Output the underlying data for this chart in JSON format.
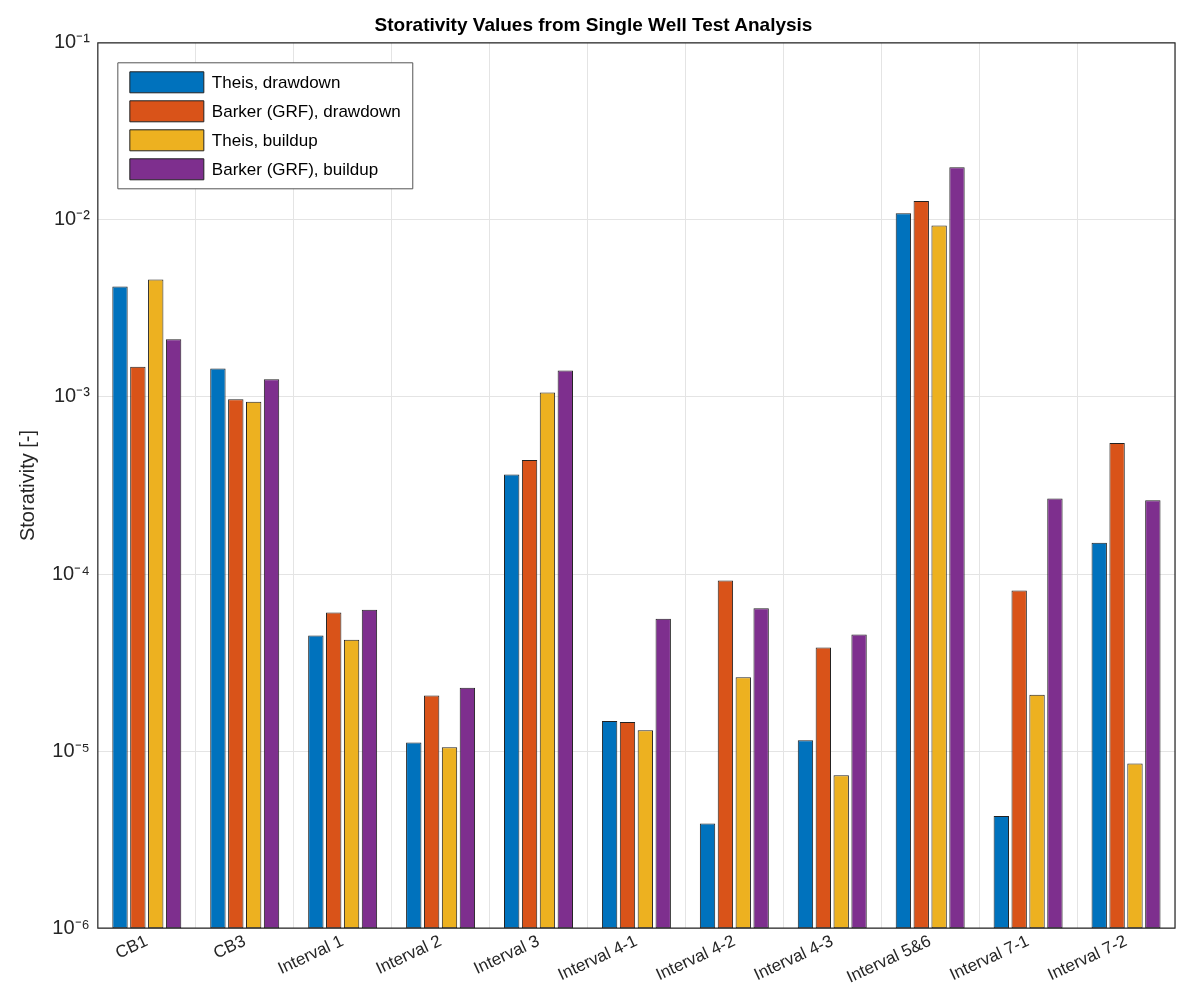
{
  "chart_data": {
    "type": "bar",
    "title": "Storativity Values from Single Well Test Analysis",
    "ylabel": "Storativity [-]",
    "categories": [
      "CB1",
      "CB3",
      "Interval 1",
      "Interval 2",
      "Interval 3",
      "Interval 4-1",
      "Interval 4-2",
      "Interval 4-3",
      "Interval 5&6",
      "Interval 7-1",
      "Interval 7-2"
    ],
    "series": [
      {
        "name": "Theis, drawdown",
        "color": "#0072bd",
        "values": [
          0.0042,
          0.00145,
          4.5e-05,
          1.12e-05,
          0.000365,
          1.48e-05,
          3.9e-06,
          1.15e-05,
          0.0109,
          4.3e-06,
          0.00015
        ]
      },
      {
        "name": "Barker (GRF), drawdown",
        "color": "#d95319",
        "values": [
          0.00148,
          0.00097,
          6.07e-05,
          2.06e-05,
          0.00044,
          1.46e-05,
          9.2e-05,
          3.85e-05,
          0.0128,
          8.07e-05,
          0.00055
        ]
      },
      {
        "name": "Theis, buildup",
        "color": "#edb120",
        "values": [
          0.0046,
          0.00094,
          4.26e-05,
          1.05e-05,
          0.00106,
          1.31e-05,
          2.61e-05,
          7.3e-06,
          0.0093,
          2.08e-05,
          8.5e-06
        ]
      },
      {
        "name": "Barker (GRF), buildup",
        "color": "#7e2f8e",
        "values": [
          0.00212,
          0.00126,
          6.29e-05,
          2.28e-05,
          0.00141,
          5.59e-05,
          6.41e-05,
          4.56e-05,
          0.0198,
          0.000267,
          0.000261
        ]
      }
    ],
    "log": "y",
    "ylim": [
      1e-06,
      0.1
    ],
    "yticks": [
      {
        "value": 1e-06,
        "label": "10⁻⁶"
      },
      {
        "value": 1e-05,
        "label": "10⁻⁵"
      },
      {
        "value": 0.0001,
        "label": "10⁻⁴"
      },
      {
        "value": 0.001,
        "label": "10⁻³"
      },
      {
        "value": 0.01,
        "label": "10⁻²"
      },
      {
        "value": 0.1,
        "label": "10⁻¹"
      }
    ],
    "grid": true,
    "legend": "top left"
  }
}
